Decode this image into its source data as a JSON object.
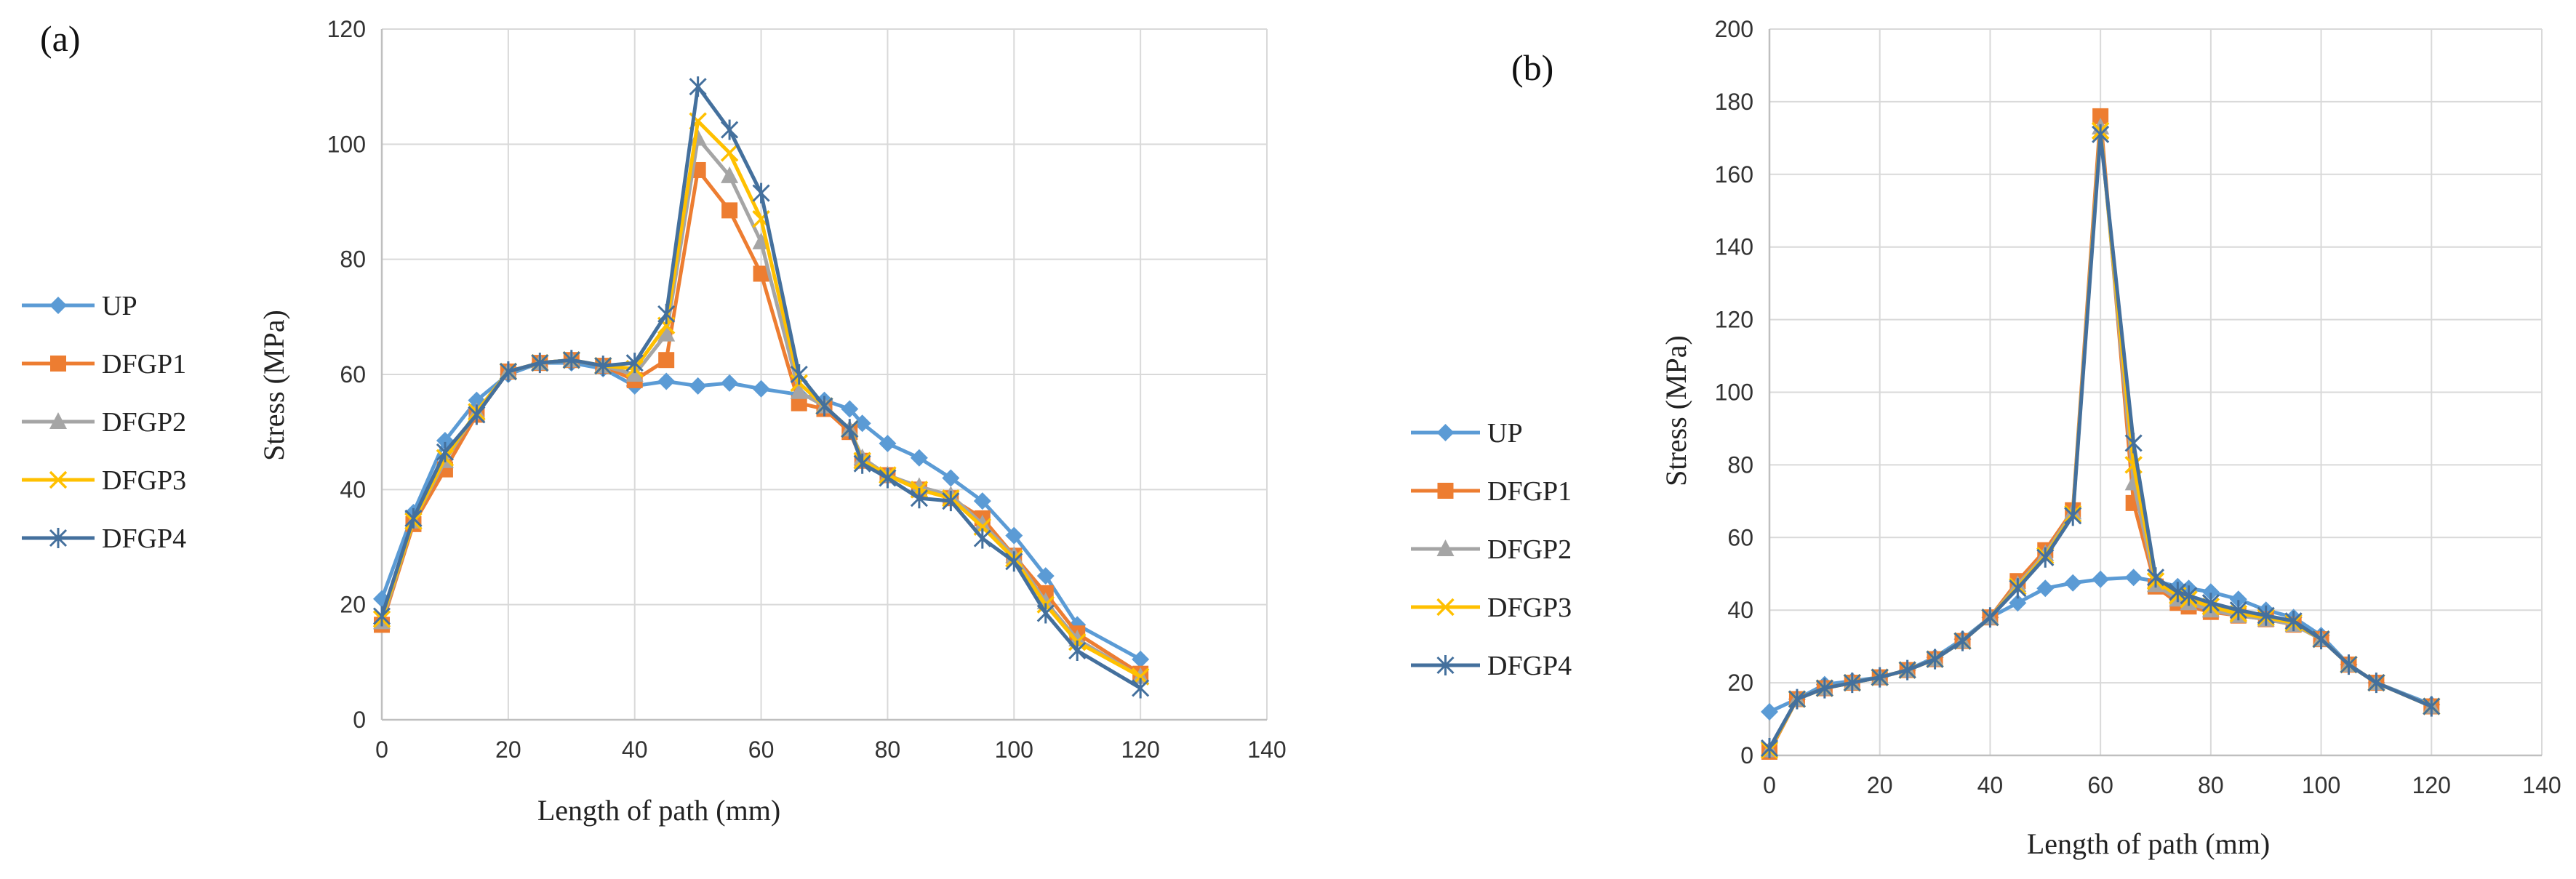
{
  "chart_data": [
    {
      "panel_label": "(a)",
      "type": "line",
      "xlabel": "Length of path (mm)",
      "ylabel": "Stress (MPa)",
      "xlim": [
        0,
        140
      ],
      "ylim": [
        0,
        120
      ],
      "x_ticks": [
        0,
        20,
        40,
        60,
        80,
        100,
        120,
        140
      ],
      "y_ticks": [
        0,
        20,
        40,
        60,
        80,
        100,
        120
      ],
      "grid": true,
      "legend_position": "left",
      "series": [
        {
          "name": "UP",
          "color": "#5b9bd5",
          "marker": "diamond",
          "x": [
            0,
            5,
            10,
            15,
            20,
            25,
            30,
            35,
            40,
            45,
            50,
            55,
            60,
            66,
            70,
            74,
            76,
            80,
            85,
            90,
            95,
            100,
            105,
            110,
            120
          ],
          "y": [
            21,
            36,
            48.5,
            55.5,
            60,
            62,
            62,
            61,
            58,
            58.8,
            58,
            58.5,
            57.5,
            56.5,
            55.5,
            54,
            51.5,
            48,
            45.5,
            42,
            38,
            32,
            25,
            16.5,
            10.5
          ]
        },
        {
          "name": "DFGP1",
          "color": "#ed7d31",
          "marker": "square",
          "x": [
            0,
            5,
            10,
            15,
            20,
            25,
            30,
            35,
            40,
            45,
            50,
            55,
            60,
            66,
            70,
            74,
            76,
            80,
            85,
            90,
            95,
            100,
            105,
            110,
            120
          ],
          "y": [
            16.5,
            34,
            43.5,
            53,
            60.5,
            62,
            62.5,
            61.5,
            59,
            62.5,
            95.5,
            88.5,
            77.5,
            55,
            54,
            50,
            45,
            42.5,
            40,
            38.5,
            35,
            28.5,
            22,
            15,
            8
          ]
        },
        {
          "name": "DFGP2",
          "color": "#a5a5a5",
          "marker": "triangle",
          "x": [
            0,
            5,
            10,
            15,
            20,
            25,
            30,
            35,
            40,
            45,
            50,
            55,
            60,
            66,
            70,
            74,
            76,
            80,
            85,
            90,
            95,
            100,
            105,
            110,
            120
          ],
          "y": [
            17,
            34.5,
            45,
            53.5,
            60.5,
            62,
            62.5,
            61.5,
            60,
            67,
            101,
            94.5,
            83,
            57,
            54.5,
            50.5,
            45.5,
            42.5,
            40.5,
            39,
            34,
            28.5,
            20.5,
            14,
            7.5
          ]
        },
        {
          "name": "DFGP3",
          "color": "#ffc000",
          "marker": "x",
          "x": [
            0,
            5,
            10,
            15,
            20,
            25,
            30,
            35,
            40,
            45,
            50,
            55,
            60,
            66,
            70,
            74,
            76,
            80,
            85,
            90,
            95,
            100,
            105,
            110,
            120
          ],
          "y": [
            17.5,
            34.5,
            45.5,
            53.5,
            60.5,
            62,
            62.5,
            61.5,
            61,
            68.5,
            104,
            98.5,
            87,
            58.5,
            54.5,
            50.5,
            45,
            42.5,
            40,
            38.5,
            33.5,
            28,
            20,
            13.5,
            7.5
          ]
        },
        {
          "name": "DFGP4",
          "color": "#44709d",
          "marker": "star",
          "x": [
            0,
            5,
            10,
            15,
            20,
            25,
            30,
            35,
            40,
            45,
            50,
            55,
            60,
            66,
            70,
            74,
            76,
            80,
            85,
            90,
            95,
            100,
            105,
            110,
            120
          ],
          "y": [
            18,
            35,
            46.5,
            53,
            60.5,
            62,
            62.5,
            61.5,
            62,
            70.5,
            110,
            102.5,
            91.5,
            60,
            54.5,
            50.5,
            44.5,
            42,
            38.5,
            38,
            31.5,
            27.5,
            18.5,
            12,
            5.5
          ]
        }
      ]
    },
    {
      "panel_label": "(b)",
      "type": "line",
      "xlabel": "Length of path (mm)",
      "ylabel": "Stress (MPa)",
      "xlim": [
        0,
        140
      ],
      "ylim": [
        0,
        200
      ],
      "x_ticks": [
        0,
        20,
        40,
        60,
        80,
        100,
        120,
        140
      ],
      "y_ticks": [
        0,
        20,
        40,
        60,
        80,
        100,
        120,
        140,
        160,
        180,
        200
      ],
      "grid": true,
      "legend_position": "left",
      "series": [
        {
          "name": "UP",
          "color": "#5b9bd5",
          "marker": "diamond",
          "x": [
            0,
            5,
            10,
            15,
            20,
            25,
            30,
            35,
            40,
            45,
            50,
            55,
            60,
            66,
            70,
            74,
            76,
            80,
            85,
            90,
            95,
            100,
            105,
            110,
            120
          ],
          "y": [
            12,
            15.5,
            19.5,
            20.5,
            21.5,
            23.5,
            27,
            32,
            38,
            42,
            46,
            47.5,
            48.5,
            49,
            48,
            46.5,
            46,
            45,
            43,
            40,
            38,
            33,
            25,
            20,
            14
          ]
        },
        {
          "name": "DFGP1",
          "color": "#ed7d31",
          "marker": "square",
          "x": [
            0,
            5,
            10,
            15,
            20,
            25,
            30,
            35,
            40,
            45,
            50,
            55,
            60,
            66,
            70,
            74,
            76,
            80,
            85,
            90,
            95,
            100,
            105,
            110,
            120
          ],
          "y": [
            1,
            15.5,
            18.5,
            20,
            21.5,
            23.5,
            26.5,
            31.5,
            38,
            48,
            56.5,
            67.5,
            176,
            69.5,
            46.5,
            42,
            41,
            39.5,
            38.5,
            37.5,
            36,
            32,
            25,
            20,
            13.5
          ]
        },
        {
          "name": "DFGP2",
          "color": "#a5a5a5",
          "marker": "triangle",
          "x": [
            0,
            5,
            10,
            15,
            20,
            25,
            30,
            35,
            40,
            45,
            50,
            55,
            60,
            66,
            70,
            74,
            76,
            80,
            85,
            90,
            95,
            100,
            105,
            110,
            120
          ],
          "y": [
            1.5,
            15.5,
            18.5,
            20,
            21.5,
            23.5,
            26.5,
            31.5,
            38,
            47,
            55.5,
            67,
            173,
            75,
            47,
            43,
            42,
            40,
            38.5,
            37.5,
            36,
            32,
            25,
            20,
            13.5
          ]
        },
        {
          "name": "DFGP3",
          "color": "#ffc000",
          "marker": "x",
          "x": [
            0,
            5,
            10,
            15,
            20,
            25,
            30,
            35,
            40,
            45,
            50,
            55,
            60,
            66,
            70,
            74,
            76,
            80,
            85,
            90,
            95,
            100,
            105,
            110,
            120
          ],
          "y": [
            1.5,
            15.5,
            18.5,
            20,
            21.5,
            23.5,
            26.5,
            31.5,
            38,
            46.5,
            55,
            66.5,
            172,
            80,
            48,
            44,
            43,
            41,
            39,
            38,
            36.5,
            32,
            25,
            20,
            13.5
          ]
        },
        {
          "name": "DFGP4",
          "color": "#44709d",
          "marker": "star",
          "x": [
            0,
            5,
            10,
            15,
            20,
            25,
            30,
            35,
            40,
            45,
            50,
            55,
            60,
            66,
            70,
            74,
            76,
            80,
            85,
            90,
            95,
            100,
            105,
            110,
            120
          ],
          "y": [
            2,
            15.5,
            18.5,
            20,
            21.5,
            23.5,
            26.5,
            31.5,
            38,
            46,
            54.5,
            66,
            171,
            86,
            49,
            45,
            44,
            42,
            40,
            38.5,
            37,
            32,
            25,
            20,
            13.5
          ]
        }
      ]
    }
  ]
}
